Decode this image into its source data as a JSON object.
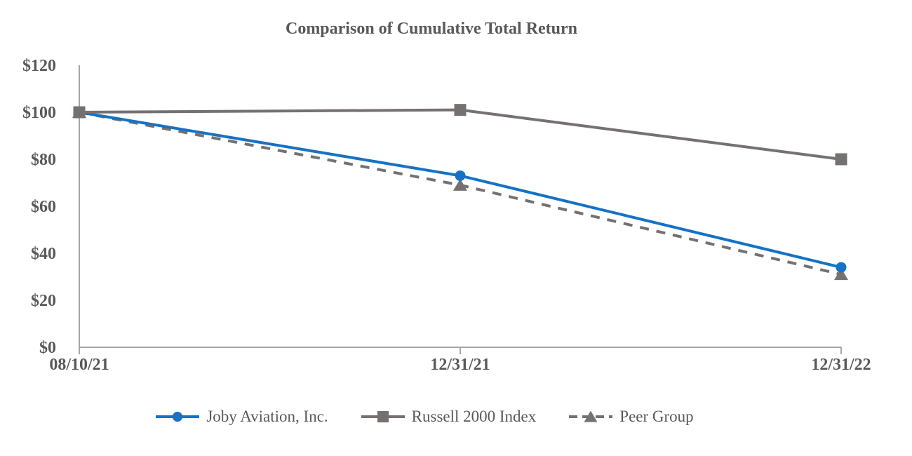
{
  "chart_data": {
    "type": "line",
    "title": "Comparison of Cumulative Total Return",
    "categories": [
      "08/10/21",
      "12/31/21",
      "12/31/22"
    ],
    "series": [
      {
        "name": "Joby Aviation, Inc.",
        "values": [
          100,
          73,
          34
        ],
        "color": "#1572C6",
        "marker": "circle",
        "line_style": "solid"
      },
      {
        "name": "Russell 2000 Index",
        "values": [
          100,
          101,
          80
        ],
        "color": "#767171",
        "marker": "square",
        "line_style": "solid"
      },
      {
        "name": "Peer Group",
        "values": [
          100,
          69,
          31
        ],
        "color": "#767171",
        "marker": "triangle",
        "line_style": "dashed"
      }
    ],
    "y_ticks": [
      {
        "value": 0,
        "label": "$0"
      },
      {
        "value": 20,
        "label": "$20"
      },
      {
        "value": 40,
        "label": "$40"
      },
      {
        "value": 60,
        "label": "$60"
      },
      {
        "value": 80,
        "label": "$80"
      },
      {
        "value": 100,
        "label": "$100"
      },
      {
        "value": 120,
        "label": "$120"
      }
    ],
    "ylim": [
      0,
      120
    ],
    "xlabel": "",
    "ylabel": "",
    "grid": false,
    "legend_position": "bottom",
    "colors": {
      "axis_line": "#A6A6A6",
      "tick_label_text": "#595959",
      "title_text": "#595959",
      "legend_text": "#595959",
      "background": "#FFFFFF"
    }
  }
}
